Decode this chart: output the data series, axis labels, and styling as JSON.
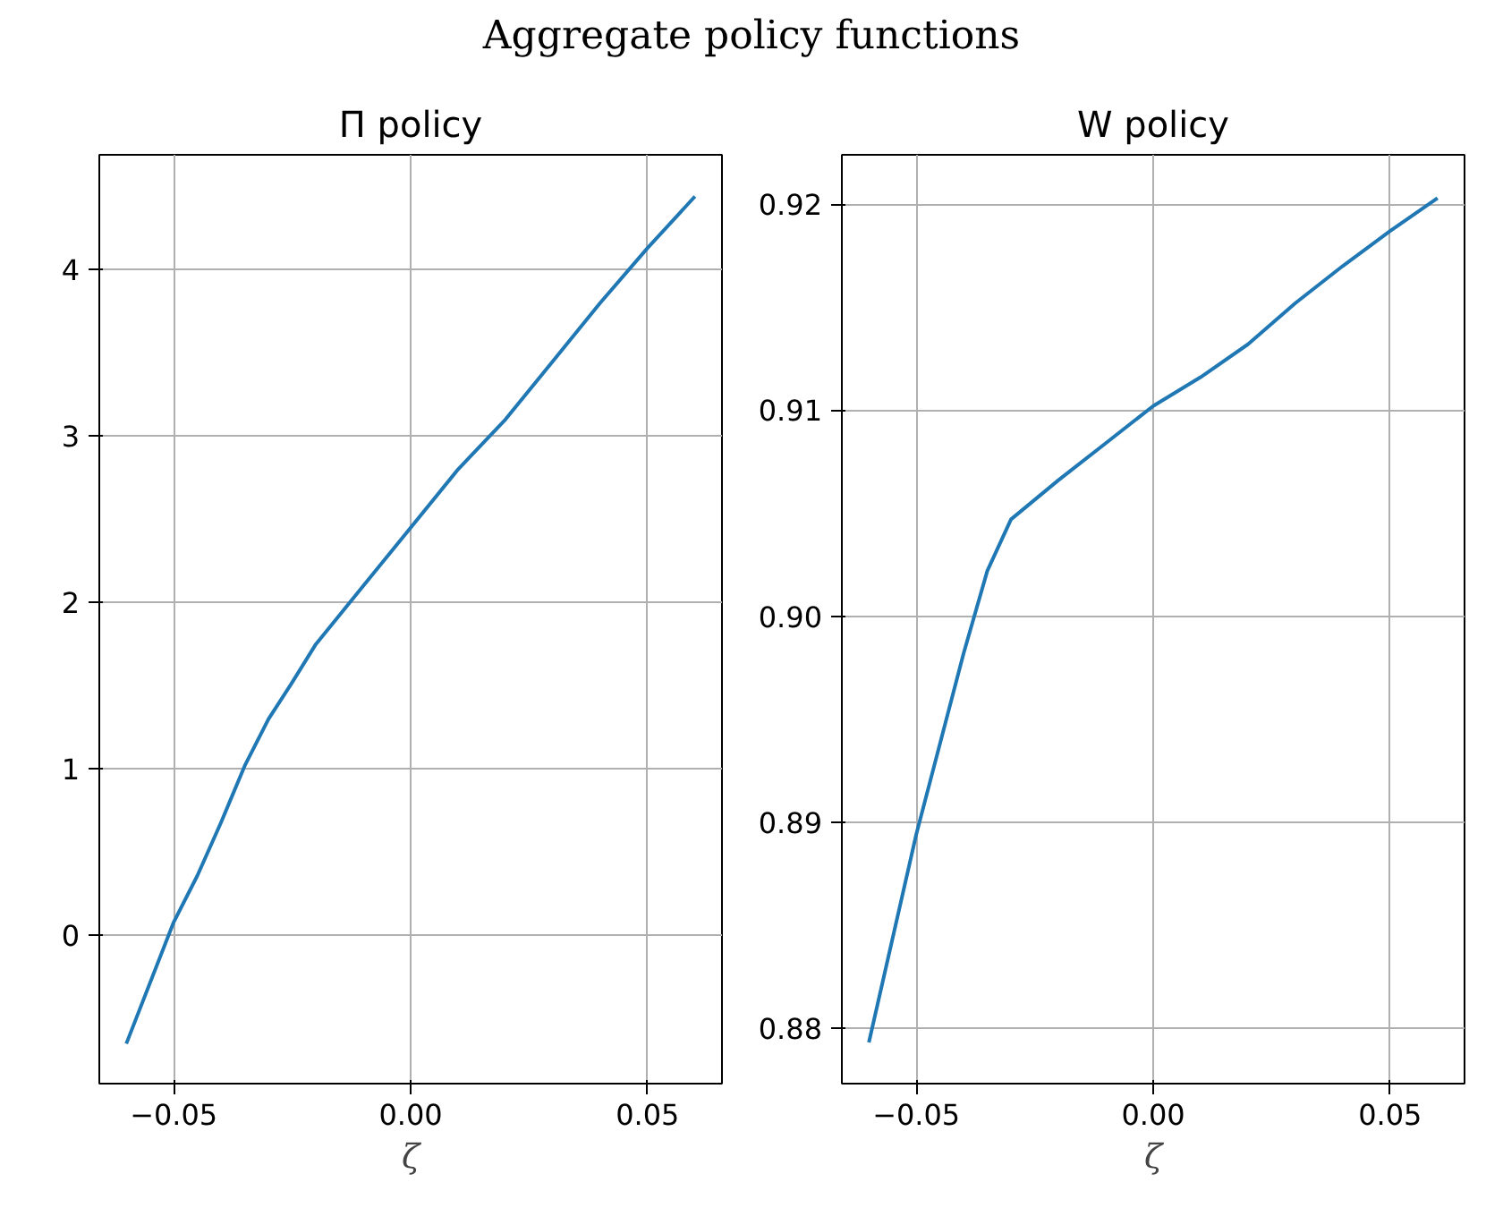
{
  "chart_data": [
    {
      "type": "line",
      "title": "Π policy",
      "xlabel": "ζ",
      "annotations": [
        "Aggregate policy functions"
      ],
      "grid": true,
      "x": [
        -0.06,
        -0.05,
        -0.045,
        -0.04,
        -0.035,
        -0.03,
        -0.025,
        -0.02,
        -0.01,
        0.0,
        0.01,
        0.02,
        0.03,
        0.04,
        0.05,
        0.06
      ],
      "series": [
        {
          "color": "#1f77b4",
          "values": [
            -0.65,
            0.08,
            0.36,
            0.68,
            1.02,
            1.3,
            1.52,
            1.75,
            2.1,
            2.45,
            2.8,
            3.1,
            3.45,
            3.8,
            4.13,
            4.44
          ]
        }
      ],
      "xlim": [
        -0.0657,
        0.0657
      ],
      "ylim": [
        -0.89,
        4.69
      ],
      "xticks": [
        {
          "value": -0.05,
          "label": "−0.05"
        },
        {
          "value": 0.0,
          "label": "0.00"
        },
        {
          "value": 0.05,
          "label": "0.05"
        }
      ],
      "yticks": [
        0,
        1,
        2,
        3,
        4
      ]
    },
    {
      "type": "line",
      "title": "W policy",
      "xlabel": "ζ",
      "grid": true,
      "x": [
        -0.06,
        -0.05,
        -0.04,
        -0.035,
        -0.03,
        -0.02,
        -0.01,
        0.0,
        0.01,
        0.02,
        0.03,
        0.04,
        0.05,
        0.06
      ],
      "series": [
        {
          "color": "#1f77b4",
          "values": [
            0.8793,
            0.8894,
            0.8982,
            0.9022,
            0.9047,
            0.9066,
            0.9084,
            0.9102,
            0.9116,
            0.9132,
            0.9152,
            0.917,
            0.9187,
            0.9203
          ]
        }
      ],
      "xlim": [
        -0.0657,
        0.0657
      ],
      "ylim": [
        0.8773,
        0.9224
      ],
      "xticks": [
        {
          "value": -0.05,
          "label": "−0.05"
        },
        {
          "value": 0.0,
          "label": "0.00"
        },
        {
          "value": 0.05,
          "label": "0.05"
        }
      ],
      "yticks": [
        {
          "value": 0.88,
          "label": "0.88"
        },
        {
          "value": 0.89,
          "label": "0.89"
        },
        {
          "value": 0.9,
          "label": "0.90"
        },
        {
          "value": 0.91,
          "label": "0.91"
        },
        {
          "value": 0.92,
          "label": "0.92"
        }
      ]
    }
  ]
}
